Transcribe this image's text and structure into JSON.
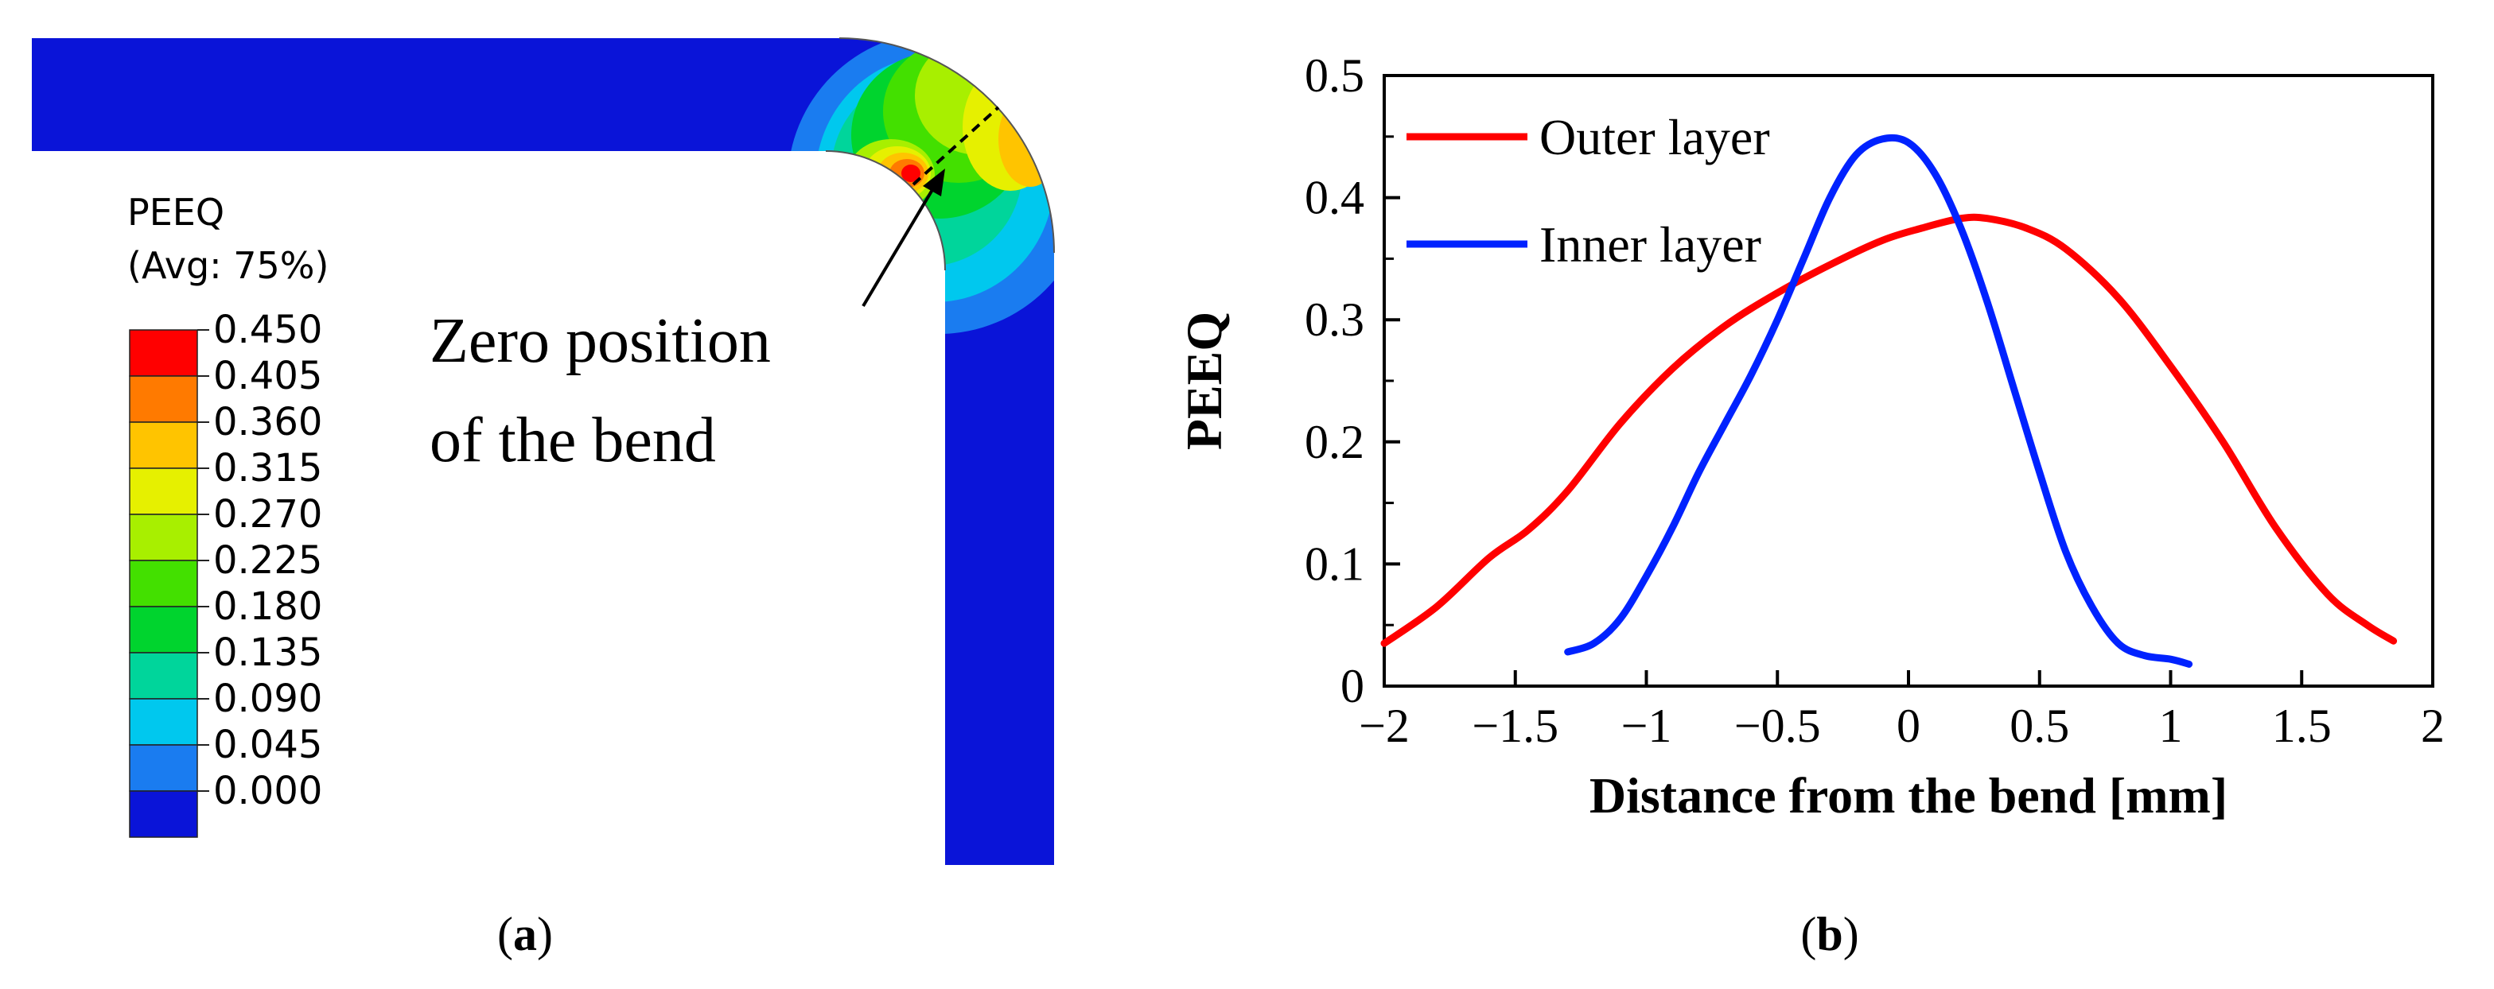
{
  "panel_a": {
    "label_open": "(",
    "label_letter": "a",
    "label_close": ")",
    "legend": {
      "title": "PEEQ",
      "subtitle": "(Avg: 75%)",
      "levels": [
        "0.450",
        "0.405",
        "0.360",
        "0.315",
        "0.270",
        "0.225",
        "0.180",
        "0.135",
        "0.090",
        "0.045",
        "0.000"
      ],
      "colors": [
        "#ff0000",
        "#ff7a00",
        "#ffc400",
        "#e6f000",
        "#a8ef00",
        "#43e000",
        "#00d42e",
        "#00d59b",
        "#00c8ee",
        "#1a7cf0",
        "#0a14d8"
      ]
    },
    "annotation_line1": "Zero position",
    "annotation_line2": "of the bend",
    "colors": {
      "base": "#0a14d8",
      "edge": "#555555"
    }
  },
  "panel_b": {
    "label_open": "(",
    "label_letter": "b",
    "label_close": ")"
  },
  "chart_data": {
    "type": "line",
    "title": "",
    "xlabel": "Distance from the bend [mm]",
    "ylabel": "PEEQ",
    "xlim": [
      -2,
      2
    ],
    "ylim": [
      0,
      0.5
    ],
    "xticks": [
      -2,
      -1.5,
      -1,
      -0.5,
      0,
      0.5,
      1,
      1.5,
      2
    ],
    "xtick_labels": [
      "−2",
      "−1.5",
      "−1",
      "−0.5",
      "0",
      "0.5",
      "1",
      "1.5",
      "2"
    ],
    "yticks": [
      0,
      0.1,
      0.2,
      0.3,
      0.4,
      0.5
    ],
    "ytick_labels": [
      "0",
      "0.1",
      "0.2",
      "0.3",
      "0.4",
      "0.5"
    ],
    "grid": false,
    "legend_position": "top-left",
    "series": [
      {
        "name": "Outer layer",
        "color": "#ff0000",
        "x": [
          -2.0,
          -1.8,
          -1.6,
          -1.45,
          -1.3,
          -1.1,
          -0.9,
          -0.7,
          -0.5,
          -0.3,
          -0.1,
          0.05,
          0.2,
          0.3,
          0.45,
          0.6,
          0.8,
          1.0,
          1.2,
          1.4,
          1.6,
          1.75,
          1.85
        ],
        "y": [
          0.035,
          0.065,
          0.105,
          0.128,
          0.16,
          0.215,
          0.26,
          0.295,
          0.322,
          0.345,
          0.365,
          0.375,
          0.383,
          0.383,
          0.375,
          0.358,
          0.318,
          0.262,
          0.2,
          0.13,
          0.075,
          0.05,
          0.037
        ]
      },
      {
        "name": "Inner layer",
        "color": "#0022ff",
        "x": [
          -1.3,
          -1.2,
          -1.1,
          -1.0,
          -0.9,
          -0.8,
          -0.7,
          -0.6,
          -0.5,
          -0.4,
          -0.3,
          -0.2,
          -0.1,
          0.0,
          0.1,
          0.2,
          0.3,
          0.4,
          0.5,
          0.6,
          0.7,
          0.8,
          0.9,
          1.0,
          1.07
        ],
        "y": [
          0.028,
          0.035,
          0.055,
          0.09,
          0.13,
          0.175,
          0.215,
          0.255,
          0.3,
          0.35,
          0.4,
          0.435,
          0.448,
          0.445,
          0.42,
          0.375,
          0.315,
          0.245,
          0.175,
          0.11,
          0.065,
          0.035,
          0.025,
          0.022,
          0.018
        ]
      }
    ]
  }
}
